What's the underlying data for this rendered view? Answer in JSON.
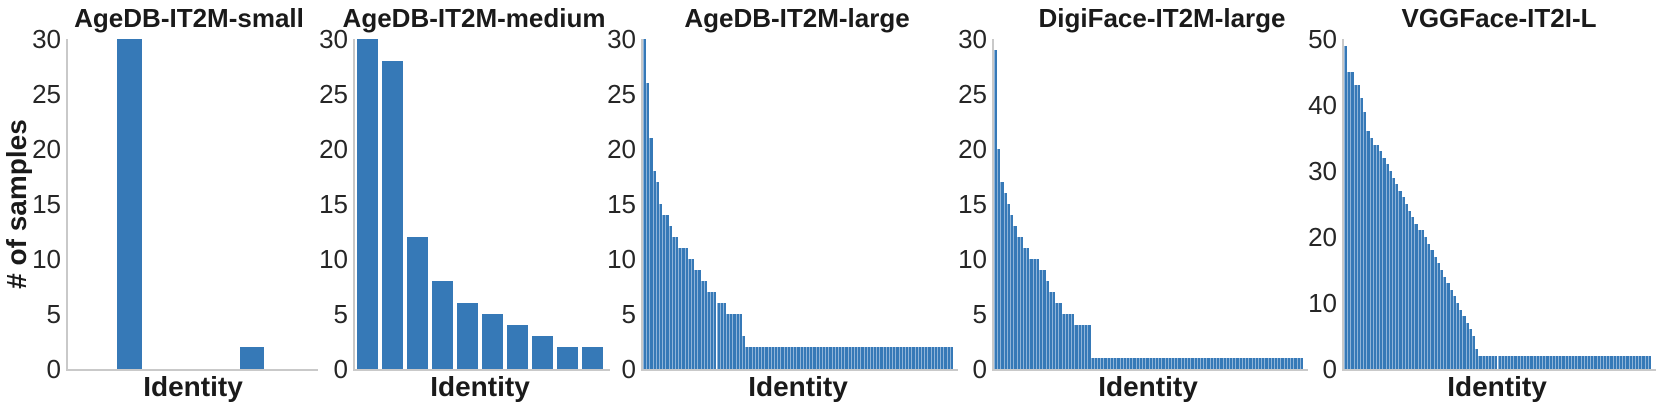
{
  "figure": {
    "ylabel": "# of samples",
    "xlabel": "Identity",
    "bar_color": "#3679b7",
    "bar_edge_color": "#8fb4d9",
    "axis_color": "#c9c9c9",
    "title_color": "#1a1a1a",
    "tick_color": "#262626",
    "background": "#ffffff"
  },
  "chart_data": [
    {
      "type": "bar",
      "title": "AgeDB-IT2M-small",
      "xlabel": "Identity",
      "ylabel": "# of samples",
      "ylim": [
        0,
        30
      ],
      "yticks": [
        0,
        5,
        10,
        15,
        20,
        25,
        30
      ],
      "grid": false,
      "values": [
        0,
        0,
        30,
        0,
        0,
        0,
        0,
        2,
        0,
        0
      ]
    },
    {
      "type": "bar",
      "title": "AgeDB-IT2M-medium",
      "xlabel": "Identity",
      "ylabel": "",
      "ylim": [
        0,
        30
      ],
      "yticks": [
        0,
        5,
        10,
        15,
        20,
        25,
        30
      ],
      "grid": false,
      "values": [
        30,
        28,
        12,
        8,
        6,
        5,
        4,
        3,
        2,
        2
      ]
    },
    {
      "type": "bar",
      "title": "AgeDB-IT2M-large",
      "xlabel": "Identity",
      "ylabel": "",
      "ylim": [
        0,
        30
      ],
      "yticks": [
        0,
        5,
        10,
        15,
        20,
        25,
        30
      ],
      "grid": false,
      "values": [
        30,
        26,
        21,
        18,
        17,
        15,
        14,
        14,
        13,
        12,
        12,
        11,
        11,
        11,
        10,
        10,
        9,
        9,
        8,
        8,
        7,
        7,
        7,
        6,
        6,
        6,
        5,
        5,
        5,
        5,
        5,
        3,
        2,
        2,
        2,
        2,
        2,
        2,
        2,
        2,
        2,
        2,
        2,
        2,
        2,
        2,
        2,
        2,
        2,
        2,
        2,
        2,
        2,
        2,
        2,
        2,
        2,
        2,
        2,
        2,
        2,
        2,
        2,
        2,
        2,
        2,
        2,
        2,
        2,
        2,
        2,
        2,
        2,
        2,
        2,
        2,
        2,
        2,
        2,
        2,
        2,
        2,
        2,
        2,
        2,
        2,
        2,
        2,
        2,
        2,
        2,
        2,
        2,
        2,
        2,
        2,
        2
      ]
    },
    {
      "type": "bar",
      "title": "DigiFace-IT2M-large",
      "xlabel": "Identity",
      "ylabel": "",
      "ylim": [
        0,
        30
      ],
      "yticks": [
        0,
        5,
        10,
        15,
        20,
        25,
        30
      ],
      "grid": false,
      "values": [
        29,
        20,
        17,
        16,
        15,
        14,
        13,
        12,
        12,
        11,
        11,
        10,
        10,
        10,
        9,
        9,
        8,
        7,
        7,
        6,
        6,
        5,
        5,
        5,
        5,
        4,
        4,
        4,
        4,
        4,
        1,
        1,
        1,
        1,
        1,
        1,
        1,
        1,
        1,
        1,
        1,
        1,
        1,
        1,
        1,
        1,
        1,
        1,
        1,
        1,
        1,
        1,
        1,
        1,
        1,
        1,
        1,
        1,
        1,
        1,
        1,
        1,
        1,
        1,
        1,
        1,
        1,
        1,
        1,
        1,
        1,
        1,
        1,
        1,
        1,
        1,
        1,
        1,
        1,
        1,
        1,
        1,
        1,
        1,
        1,
        1,
        1,
        1,
        1,
        1,
        1,
        1,
        1,
        1,
        1,
        1
      ]
    },
    {
      "type": "bar",
      "title": "VGGFace-IT2I-L",
      "xlabel": "Identity",
      "ylabel": "",
      "ylim": [
        0,
        50
      ],
      "yticks": [
        0,
        10,
        20,
        30,
        40,
        50
      ],
      "grid": false,
      "values": [
        49,
        45,
        45,
        43,
        43,
        41,
        39,
        36,
        35,
        34,
        34,
        33,
        32,
        31,
        30,
        29,
        28,
        27,
        26,
        25,
        24,
        23,
        22,
        21,
        21,
        20,
        19,
        18,
        17,
        16,
        15,
        14,
        13,
        12,
        11,
        10,
        9,
        8,
        7,
        6,
        5,
        3,
        2,
        2,
        2,
        2,
        2,
        2,
        2,
        2,
        2,
        2,
        2,
        2,
        2,
        2,
        2,
        2,
        2,
        2,
        2,
        2,
        2,
        2,
        2,
        2,
        2,
        2,
        2,
        2,
        2,
        2,
        2,
        2,
        2,
        2,
        2,
        2,
        2,
        2,
        2,
        2,
        2,
        2,
        2,
        2,
        2,
        2,
        2,
        2,
        2,
        2,
        2,
        2,
        2,
        2
      ]
    }
  ]
}
